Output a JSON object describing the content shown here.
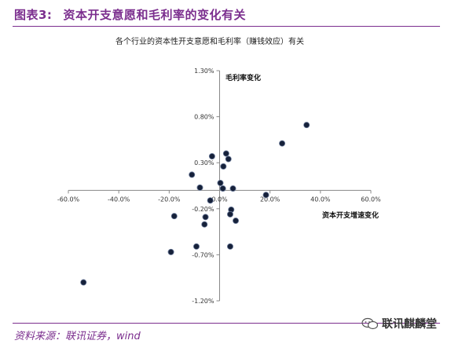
{
  "figure": {
    "label": "图表3:",
    "title": "资本开支意愿和毛利率的变化有关"
  },
  "source": "资料来源：联讯证券，wind",
  "watermark": "联讯麒麟堂",
  "colors": {
    "accent": "#7b2e8e",
    "point": "#16213a",
    "axis": "#888888"
  },
  "chart_data": {
    "type": "scatter",
    "title": "各个行业的资本性开支意愿和毛利率（赚钱效应）有关",
    "xlabel": "资本开支增速变化",
    "ylabel": "毛利率变化",
    "xlim": [
      -60,
      60
    ],
    "ylim": [
      -1.2,
      1.3
    ],
    "x_ticks": [
      -60,
      -40,
      -20,
      0,
      20,
      40,
      60
    ],
    "y_ticks": [
      1.3,
      0.8,
      0.3,
      -0.2,
      -0.7,
      -1.2
    ],
    "x_tick_labels": [
      "-60.0%",
      "-40.0%",
      "-20.0%",
      "0.0%",
      "20.0%",
      "40.0%",
      "60.0%"
    ],
    "y_tick_labels": [
      "1.30%",
      "0.80%",
      "0.30%",
      "-0.20%",
      "-0.70%",
      "-1.20%"
    ],
    "unit": "%",
    "points": [
      {
        "x": 34.5,
        "y": 0.71
      },
      {
        "x": 24.8,
        "y": 0.51
      },
      {
        "x": 2.6,
        "y": 0.4
      },
      {
        "x": 3.5,
        "y": 0.34
      },
      {
        "x": -3.0,
        "y": 0.37
      },
      {
        "x": 1.5,
        "y": 0.26
      },
      {
        "x": -11.0,
        "y": 0.17
      },
      {
        "x": 0.3,
        "y": 0.08
      },
      {
        "x": -7.8,
        "y": 0.03
      },
      {
        "x": 1.3,
        "y": 0.02
      },
      {
        "x": 5.3,
        "y": 0.02
      },
      {
        "x": 18.4,
        "y": -0.05
      },
      {
        "x": -3.7,
        "y": -0.11
      },
      {
        "x": 4.6,
        "y": -0.21
      },
      {
        "x": 4.2,
        "y": -0.26
      },
      {
        "x": -18.0,
        "y": -0.28
      },
      {
        "x": -5.6,
        "y": -0.29
      },
      {
        "x": 6.4,
        "y": -0.33
      },
      {
        "x": -6.0,
        "y": -0.37
      },
      {
        "x": -9.2,
        "y": -0.61
      },
      {
        "x": 4.2,
        "y": -0.61
      },
      {
        "x": -19.3,
        "y": -0.67
      },
      {
        "x": -54.0,
        "y": -1.0
      }
    ],
    "grid": false,
    "legend": "none"
  }
}
